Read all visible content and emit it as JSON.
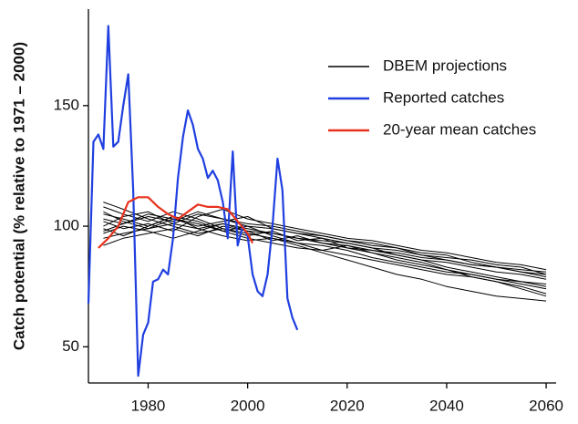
{
  "chart_data": {
    "type": "line",
    "y_label": "Catch potential (% relative to 1971 – 2000)",
    "xlim": [
      1968,
      2062
    ],
    "xticks": [
      1980,
      2000,
      2020,
      2040,
      2060
    ],
    "ylim": [
      35,
      190
    ],
    "yticks": [
      50,
      100,
      150
    ],
    "legend_position": "upper right",
    "projections": {
      "name": "DBEM projections",
      "color": "#000000",
      "x": [
        1971,
        1975,
        1980,
        1985,
        1990,
        1995,
        2000,
        2005,
        2010,
        2015,
        2020,
        2025,
        2030,
        2035,
        2040,
        2045,
        2050,
        2055,
        2060
      ],
      "lines": [
        [
          105,
          103,
          100,
          104,
          99,
          101,
          98,
          97,
          95,
          93,
          92,
          90,
          88,
          86,
          85,
          83,
          81,
          80,
          78
        ],
        [
          98,
          101,
          104,
          102,
          106,
          103,
          100,
          99,
          97,
          96,
          94,
          92,
          91,
          88,
          86,
          84,
          83,
          81,
          80
        ],
        [
          110,
          107,
          103,
          100,
          97,
          99,
          96,
          98,
          94,
          95,
          91,
          89,
          87,
          85,
          82,
          80,
          78,
          76,
          74
        ],
        [
          95,
          97,
          99,
          103,
          101,
          98,
          100,
          96,
          93,
          90,
          88,
          86,
          84,
          82,
          80,
          79,
          77,
          75,
          72
        ],
        [
          102,
          99,
          101,
          98,
          104,
          107,
          103,
          101,
          99,
          97,
          95,
          94,
          92,
          90,
          89,
          87,
          85,
          84,
          82
        ],
        [
          100,
          104,
          106,
          101,
          99,
          96,
          94,
          95,
          92,
          89,
          86,
          83,
          80,
          78,
          75,
          73,
          71,
          70,
          69
        ],
        [
          92,
          95,
          97,
          99,
          96,
          100,
          98,
          94,
          96,
          93,
          91,
          90,
          89,
          87,
          86,
          84,
          83,
          81,
          79
        ],
        [
          108,
          105,
          102,
          106,
          103,
          99,
          97,
          95,
          93,
          92,
          90,
          87,
          85,
          83,
          81,
          80,
          78,
          77,
          76
        ],
        [
          97,
          100,
          98,
          95,
          98,
          101,
          99,
          97,
          95,
          94,
          93,
          91,
          90,
          88,
          87,
          86,
          84,
          83,
          80
        ],
        [
          103,
          101,
          105,
          103,
          100,
          102,
          104,
          99,
          97,
          95,
          93,
          91,
          88,
          86,
          83,
          81,
          79,
          77,
          75
        ],
        [
          99,
          96,
          100,
          104,
          102,
          98,
          95,
          93,
          91,
          90,
          92,
          89,
          86,
          84,
          82,
          79,
          77,
          74,
          71
        ],
        [
          106,
          102,
          99,
          101,
          105,
          103,
          101,
          100,
          98,
          96,
          94,
          93,
          91,
          89,
          88,
          85,
          83,
          82,
          81
        ]
      ]
    },
    "series": [
      {
        "name": "Reported catches",
        "color": "#1f3fe0",
        "x": [
          1968,
          1969,
          1970,
          1971,
          1972,
          1973,
          1974,
          1975,
          1976,
          1977,
          1978,
          1979,
          1980,
          1981,
          1982,
          1983,
          1984,
          1985,
          1986,
          1987,
          1988,
          1989,
          1990,
          1991,
          1992,
          1993,
          1994,
          1995,
          1996,
          1997,
          1998,
          1999,
          2000,
          2001,
          2002,
          2003,
          2004,
          2005,
          2006,
          2007,
          2008,
          2009,
          2010
        ],
        "values": [
          68,
          135,
          138,
          132,
          183,
          133,
          135,
          150,
          163,
          115,
          38,
          55,
          60,
          77,
          78,
          82,
          80,
          95,
          120,
          137,
          148,
          142,
          132,
          128,
          120,
          123,
          119,
          110,
          95,
          131,
          92,
          100,
          96,
          80,
          73,
          71,
          80,
          100,
          128,
          115,
          70,
          62,
          57
        ]
      },
      {
        "name": "20-year mean catches",
        "color": "#e8321e",
        "x": [
          1970,
          1972,
          1974,
          1976,
          1978,
          1980,
          1982,
          1984,
          1986,
          1988,
          1990,
          1992,
          1994,
          1996,
          1998,
          2000,
          2001
        ],
        "values": [
          91,
          95,
          100,
          110,
          112,
          112,
          108,
          105,
          103,
          106,
          109,
          108,
          108,
          107,
          102,
          97,
          93
        ]
      }
    ]
  }
}
